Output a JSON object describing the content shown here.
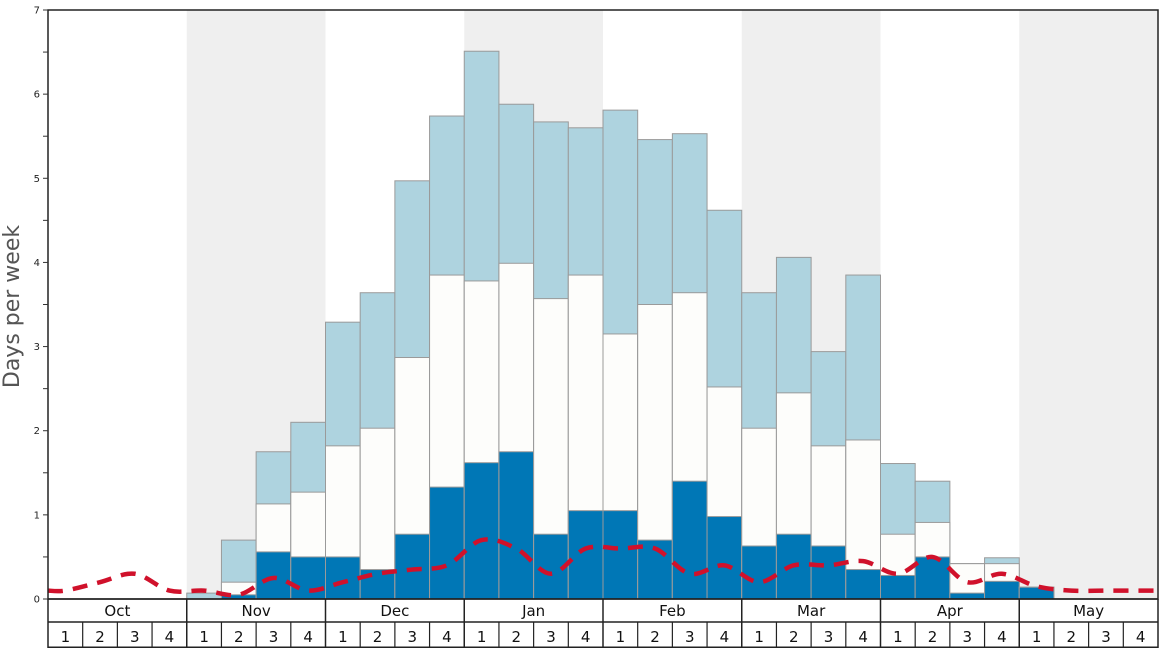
{
  "chart_data": {
    "type": "bar",
    "subtype": "stacked-with-line",
    "ylabel": "Days per week",
    "xlabel": "",
    "ylim": [
      0,
      7
    ],
    "yticks": [
      0,
      1,
      2,
      3,
      4,
      5,
      6,
      7
    ],
    "grid": false,
    "months": [
      "Oct",
      "Nov",
      "Dec",
      "Jan",
      "Feb",
      "Mar",
      "Apr",
      "May"
    ],
    "weeks_per_month": [
      "1",
      "2",
      "3",
      "4"
    ],
    "month_shading": [
      false,
      true,
      false,
      true,
      false,
      true,
      false,
      true
    ],
    "colors": {
      "dark": "#0077b6",
      "white": "#fdfdfb",
      "light": "#aed3df",
      "bar_edge": "#9a9a9a",
      "shade": "#efefef",
      "line": "#d0112b"
    },
    "series": [
      {
        "values": [
          0,
          0,
          0,
          0,
          0,
          0.05,
          0.56,
          0.5,
          0.5,
          0.35,
          0.77,
          1.33,
          1.62,
          1.75,
          0.77,
          1.05,
          1.05,
          0.7,
          1.4,
          0.98,
          0.63,
          0.77,
          0.63,
          0.35,
          0.28,
          0.5,
          0.07,
          0.21,
          0.14,
          0,
          0,
          0
        ]
      },
      {
        "values": [
          0,
          0,
          0,
          0,
          0,
          0.2,
          1.13,
          1.27,
          1.82,
          2.03,
          2.87,
          3.85,
          3.78,
          3.99,
          3.57,
          3.85,
          3.15,
          3.5,
          3.64,
          2.52,
          2.03,
          2.45,
          1.82,
          1.89,
          0.77,
          0.91,
          0.42,
          0.42,
          0.14,
          0,
          0,
          0
        ]
      },
      {
        "values": [
          0,
          0,
          0,
          0,
          0.07,
          0.7,
          1.75,
          2.1,
          3.29,
          3.64,
          4.97,
          5.74,
          6.51,
          5.88,
          5.67,
          5.6,
          5.81,
          5.46,
          5.53,
          4.62,
          3.64,
          4.06,
          2.94,
          3.85,
          1.61,
          1.4,
          0.42,
          0.49,
          0.14,
          0,
          0,
          0
        ]
      },
      {
        "type": "line",
        "values": [
          0.1,
          0.2,
          0.3,
          0.1,
          0.1,
          0.05,
          0.25,
          0.1,
          0.2,
          0.3,
          0.35,
          0.4,
          0.7,
          0.6,
          0.3,
          0.6,
          0.6,
          0.6,
          0.3,
          0.4,
          0.2,
          0.4,
          0.4,
          0.45,
          0.3,
          0.5,
          0.2,
          0.3,
          0.15,
          0.1,
          0.1,
          0.1
        ]
      }
    ]
  }
}
